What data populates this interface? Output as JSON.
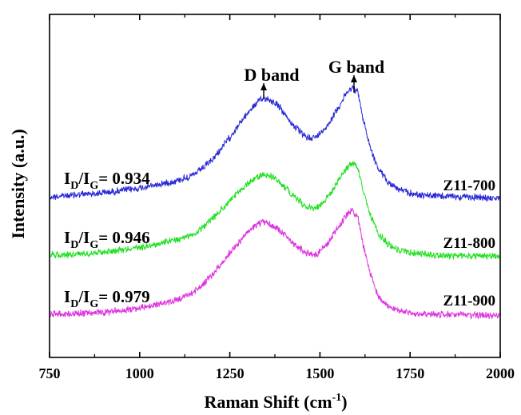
{
  "chart_data": {
    "type": "line",
    "title": "",
    "xlabel": "Raman Shift (cm",
    "xlabel_sup": "-1",
    "xlabel_close": ")",
    "ylabel": "Intensity (a.u.)",
    "xlim": [
      750,
      2000
    ],
    "x_ticks": [
      "750",
      "1000",
      "1250",
      "1500",
      "1750",
      "2000"
    ],
    "y_ticks_shown": false,
    "grid": false,
    "legend": "none",
    "series": [
      {
        "name": "Z11-700",
        "color": "#2a2ad6",
        "x": [
          750,
          800,
          900,
          1000,
          1100,
          1150,
          1200,
          1250,
          1300,
          1330,
          1350,
          1380,
          1420,
          1460,
          1490,
          1520,
          1550,
          1575,
          1590,
          1605,
          1620,
          1640,
          1660,
          1690,
          1720,
          1760,
          1800,
          1900,
          2000
        ],
        "y": [
          0.02,
          0.03,
          0.05,
          0.08,
          0.13,
          0.17,
          0.27,
          0.43,
          0.6,
          0.68,
          0.7,
          0.66,
          0.53,
          0.43,
          0.43,
          0.51,
          0.63,
          0.74,
          0.77,
          0.74,
          0.55,
          0.36,
          0.22,
          0.12,
          0.07,
          0.04,
          0.03,
          0.02,
          0.01
        ]
      },
      {
        "name": "Z11-800",
        "color": "#22e022",
        "x": [
          750,
          800,
          900,
          1000,
          1100,
          1150,
          1200,
          1250,
          1300,
          1330,
          1350,
          1380,
          1420,
          1460,
          1490,
          1520,
          1550,
          1575,
          1590,
          1605,
          1620,
          1640,
          1660,
          1690,
          1720,
          1760,
          1800,
          1900,
          2000
        ],
        "y": [
          0.03,
          0.03,
          0.05,
          0.08,
          0.13,
          0.17,
          0.27,
          0.4,
          0.52,
          0.57,
          0.58,
          0.55,
          0.45,
          0.36,
          0.35,
          0.42,
          0.53,
          0.63,
          0.66,
          0.63,
          0.46,
          0.3,
          0.18,
          0.1,
          0.06,
          0.04,
          0.03,
          0.02,
          0.02
        ]
      },
      {
        "name": "Z11-900",
        "color": "#dd33dd",
        "x": [
          750,
          800,
          900,
          1000,
          1100,
          1150,
          1200,
          1250,
          1300,
          1330,
          1350,
          1380,
          1420,
          1460,
          1490,
          1520,
          1550,
          1575,
          1590,
          1605,
          1620,
          1640,
          1660,
          1690,
          1720,
          1760,
          1800,
          1900,
          2000
        ],
        "y": [
          0.03,
          0.03,
          0.04,
          0.07,
          0.12,
          0.18,
          0.29,
          0.45,
          0.59,
          0.65,
          0.66,
          0.62,
          0.53,
          0.45,
          0.44,
          0.51,
          0.62,
          0.71,
          0.74,
          0.7,
          0.5,
          0.3,
          0.16,
          0.08,
          0.05,
          0.03,
          0.03,
          0.02,
          0.02
        ]
      }
    ],
    "annotations": {
      "d_band": "D band",
      "g_band": "G band",
      "ratios": [
        {
          "label_main": "I",
          "sub1": "D",
          "slash": "/I",
          "sub2": "G",
          "value": "= 0.934"
        },
        {
          "label_main": "I",
          "sub1": "D",
          "slash": "/I",
          "sub2": "G",
          "value": "= 0.946"
        },
        {
          "label_main": "I",
          "sub1": "D",
          "slash": "/I",
          "sub2": "G",
          "value": "= 0.979"
        }
      ],
      "sample_labels": [
        "Z11-700",
        "Z11-800",
        "Z11-900"
      ]
    }
  }
}
